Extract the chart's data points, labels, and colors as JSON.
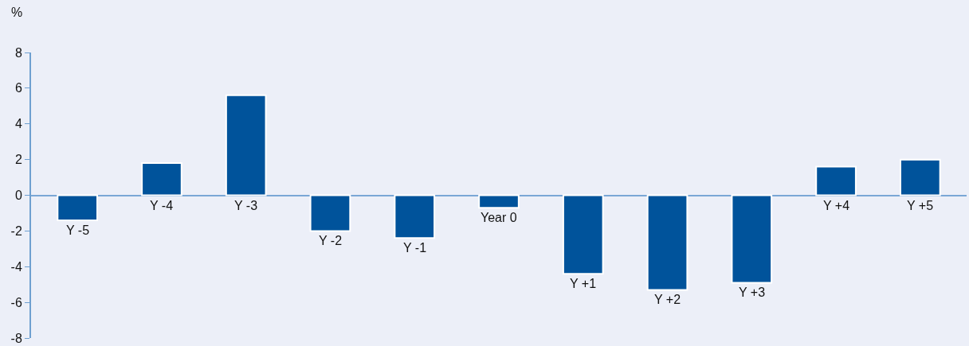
{
  "chart_data": {
    "type": "bar",
    "ylabel": "%",
    "categories": [
      "Y -5",
      "Y -4",
      "Y -3",
      "Y -2",
      "Y -1",
      "Year 0",
      "Y +1",
      "Y +2",
      "Y +3",
      "Y +4",
      "Y +5"
    ],
    "values": [
      -1.4,
      1.8,
      5.6,
      -2.0,
      -2.4,
      -0.7,
      -4.4,
      -5.3,
      -4.9,
      1.6,
      2.0
    ],
    "color": "#00539b",
    "ylim": [
      -8,
      8
    ],
    "yticks": [
      -8,
      -6,
      -4,
      -2,
      0,
      2,
      4,
      6,
      8
    ],
    "grid": false,
    "tick_labels": "y"
  }
}
